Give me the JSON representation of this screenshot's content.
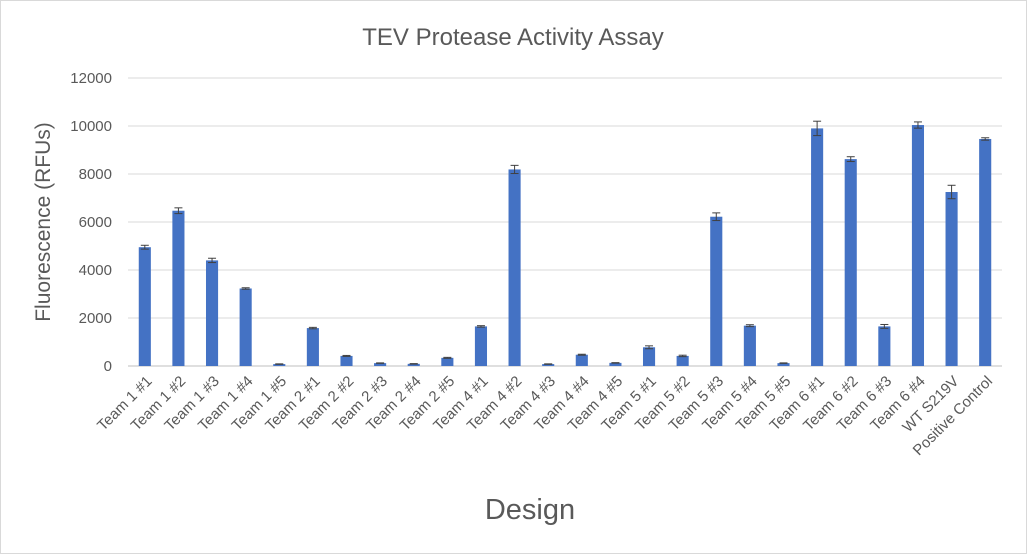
{
  "chart_data": {
    "type": "bar",
    "title": "TEV Protease Activity Assay",
    "xlabel": "Design",
    "ylabel": "Fluorescence (RFUs)",
    "ylim": [
      0,
      12000
    ],
    "yticks": [
      0,
      2000,
      4000,
      6000,
      8000,
      10000,
      12000
    ],
    "grid": true,
    "legend": "none",
    "bar_color": "#4472c4",
    "categories": [
      "Team 1 #1",
      "Team 1 #2",
      "Team 1 #3",
      "Team 1 #4",
      "Team 1 #5",
      "Team 2 #1",
      "Team 2 #2",
      "Team 2 #3",
      "Team 2 #4",
      "Team 2 #5",
      "Team 4 #1",
      "Team 4 #2",
      "Team 4 #3",
      "Team 4 #4",
      "Team 4 #5",
      "Team 5 #1",
      "Team 5 #2",
      "Team 5 #3",
      "Team 5 #4",
      "Team 5 #5",
      "Team 6 #1",
      "Team 6 #2",
      "Team 6 #3",
      "Team 6 #4",
      "WT S219V",
      "Positive Control"
    ],
    "values": [
      4950,
      6470,
      4400,
      3230,
      80,
      1580,
      420,
      120,
      90,
      340,
      1650,
      8190,
      80,
      470,
      130,
      780,
      420,
      6220,
      1680,
      120,
      9900,
      8620,
      1650,
      10040,
      7250,
      9460
    ],
    "errors": [
      80,
      120,
      90,
      30,
      10,
      30,
      20,
      10,
      10,
      20,
      30,
      170,
      10,
      20,
      10,
      60,
      30,
      160,
      40,
      10,
      300,
      100,
      80,
      130,
      280,
      50
    ]
  }
}
